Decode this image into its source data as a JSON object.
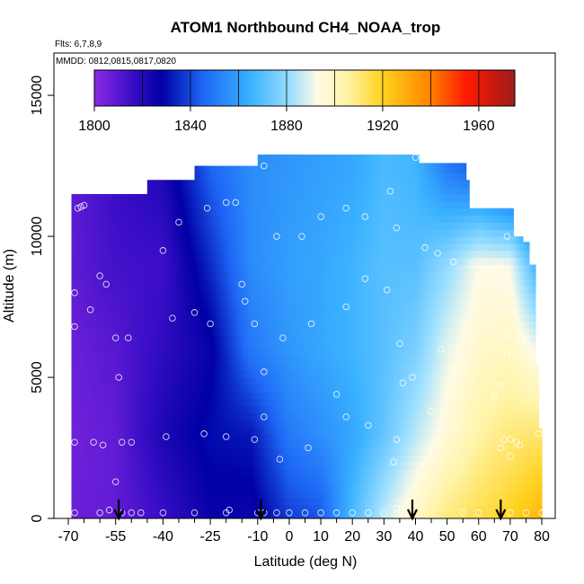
{
  "chart_data": {
    "type": "heatmap",
    "title": "ATOM1 Northbound CH4_NOAA_trop",
    "flights_label": "Flts: 6,7,8,9",
    "dates_label": "MMDD: 0812,0815,0817,0820",
    "xlabel": "Latitude (deg N)",
    "ylabel": "Altitude (m)",
    "xlim": [
      -70,
      80
    ],
    "ylim": [
      0,
      16500
    ],
    "x_ticks": [
      -70,
      -55,
      -40,
      -25,
      -10,
      0,
      10,
      20,
      30,
      40,
      50,
      60,
      70,
      80
    ],
    "x_tick_labels": [
      "-70",
      "-55",
      "-40",
      "-25",
      "-10",
      "0",
      "10",
      "20",
      "30",
      "40",
      "50",
      "60",
      "70",
      "80"
    ],
    "minor_x_ticks": [
      -65,
      -60,
      -50,
      -45,
      -35,
      -30,
      -20,
      -15,
      -5,
      5,
      15,
      25,
      35,
      45,
      55,
      65,
      75
    ],
    "y_ticks": [
      0,
      5000,
      10000,
      15000
    ],
    "y_tick_labels": [
      "0",
      "5000",
      "10000",
      "15000"
    ],
    "colorbar": {
      "min": 1800,
      "max": 1975,
      "ticks": [
        1800,
        1840,
        1880,
        1920,
        1960
      ],
      "tick_labels": [
        "1800",
        "1840",
        "1880",
        "1920",
        "1960"
      ],
      "stops": [
        {
          "v": 1800,
          "c": "#8a2be2"
        },
        {
          "v": 1815,
          "c": "#3d0fc8"
        },
        {
          "v": 1828,
          "c": "#0000a5"
        },
        {
          "v": 1845,
          "c": "#1e66f5"
        },
        {
          "v": 1865,
          "c": "#3ab2ff"
        },
        {
          "v": 1882,
          "c": "#9fe0ff"
        },
        {
          "v": 1893,
          "c": "#fffbe6"
        },
        {
          "v": 1905,
          "c": "#fff4a8"
        },
        {
          "v": 1920,
          "c": "#ffd21f"
        },
        {
          "v": 1938,
          "c": "#ff8c00"
        },
        {
          "v": 1955,
          "c": "#ff1a00"
        },
        {
          "v": 1975,
          "c": "#9b1c1c"
        }
      ]
    },
    "arrows_latitude": [
      -54,
      -9,
      39,
      67
    ],
    "coverage": [
      {
        "lat": -68,
        "top": 11500
      },
      {
        "lat": -55,
        "top": 11500
      },
      {
        "lat": -45,
        "top": 11500
      },
      {
        "lat": -44,
        "top": 12000
      },
      {
        "lat": -30,
        "top": 12000
      },
      {
        "lat": -29,
        "top": 12500
      },
      {
        "lat": -10,
        "top": 12500
      },
      {
        "lat": -9,
        "top": 12900
      },
      {
        "lat": 41,
        "top": 12900
      },
      {
        "lat": 42,
        "top": 12600
      },
      {
        "lat": 56,
        "top": 12600
      },
      {
        "lat": 57,
        "top": 12000
      },
      {
        "lat": 58,
        "top": 11000
      },
      {
        "lat": 70,
        "top": 11000
      },
      {
        "lat": 72,
        "top": 10000
      },
      {
        "lat": 75,
        "top": 9800
      },
      {
        "lat": 77,
        "top": 9000
      },
      {
        "lat": 79,
        "top": 5500
      },
      {
        "lat": 80,
        "top": 3200
      }
    ],
    "field_nodes": [
      {
        "lat": -70,
        "v": [
          1806,
          1805,
          1806,
          1808,
          1808
        ]
      },
      {
        "lat": -55,
        "v": [
          1808,
          1808,
          1810,
          1814,
          1816
        ]
      },
      {
        "lat": -40,
        "v": [
          1816,
          1822,
          1818,
          1815,
          1822
        ]
      },
      {
        "lat": -25,
        "v": [
          1826,
          1830,
          1826,
          1835,
          1845
        ]
      },
      {
        "lat": -12,
        "v": [
          1825,
          1832,
          1850,
          1855,
          1855
        ]
      },
      {
        "lat": 0,
        "v": [
          1838,
          1850,
          1858,
          1860,
          1858
        ]
      },
      {
        "lat": 10,
        "v": [
          1842,
          1856,
          1862,
          1862,
          1860
        ]
      },
      {
        "lat": 20,
        "v": [
          1868,
          1862,
          1866,
          1866,
          1862
        ]
      },
      {
        "lat": 30,
        "v": [
          1886,
          1872,
          1870,
          1870,
          1868
        ]
      },
      {
        "lat": 40,
        "v": [
          1900,
          1885,
          1876,
          1870,
          1866
        ]
      },
      {
        "lat": 50,
        "v": [
          1910,
          1896,
          1890,
          1880,
          1850
        ]
      },
      {
        "lat": 60,
        "v": [
          1915,
          1905,
          1898,
          1893,
          1842
        ]
      },
      {
        "lat": 70,
        "v": [
          1920,
          1910,
          1900,
          1892,
          1832
        ]
      },
      {
        "lat": 80,
        "v": [
          1928,
          1912,
          1890,
          1860,
          1830
        ]
      }
    ],
    "field_alts": [
      0,
      3000,
      6000,
      9000,
      12500
    ],
    "sample_points": [
      [
        -68,
        8000
      ],
      [
        -68,
        6800
      ],
      [
        -67,
        11000
      ],
      [
        -66,
        11050
      ],
      [
        -65,
        11100
      ],
      [
        -63,
        7400
      ],
      [
        -60,
        8600
      ],
      [
        -58,
        8300
      ],
      [
        -55,
        6400
      ],
      [
        -54,
        5000
      ],
      [
        -51,
        6400
      ],
      [
        -40,
        9500
      ],
      [
        -37,
        7100
      ],
      [
        -35,
        10500
      ],
      [
        -30,
        7300
      ],
      [
        -26,
        11000
      ],
      [
        -25,
        6900
      ],
      [
        -20,
        11200
      ],
      [
        -17,
        11200
      ],
      [
        -15,
        8300
      ],
      [
        -14,
        7700
      ],
      [
        -11,
        6900
      ],
      [
        -8,
        12500
      ],
      [
        -8,
        5200
      ],
      [
        -4,
        10000
      ],
      [
        -2,
        6400
      ],
      [
        4,
        10000
      ],
      [
        7,
        6900
      ],
      [
        10,
        10700
      ],
      [
        15,
        4400
      ],
      [
        18,
        11000
      ],
      [
        18,
        7500
      ],
      [
        24,
        10700
      ],
      [
        24,
        8500
      ],
      [
        31,
        8100
      ],
      [
        32,
        11600
      ],
      [
        34,
        10300
      ],
      [
        35,
        6200
      ],
      [
        36,
        4800
      ],
      [
        39,
        5000
      ],
      [
        40,
        12800
      ],
      [
        43,
        9600
      ],
      [
        47,
        9400
      ],
      [
        48,
        6000
      ],
      [
        45,
        3800
      ],
      [
        52,
        9100
      ],
      [
        58,
        9000
      ],
      [
        67,
        9000
      ],
      [
        69,
        10000
      ],
      [
        70,
        8100
      ],
      [
        69,
        6500
      ],
      [
        69,
        5800
      ],
      [
        67,
        4700
      ],
      [
        65,
        4300
      ],
      [
        67,
        2500
      ],
      [
        68,
        2800
      ],
      [
        70,
        2800
      ],
      [
        70,
        2200
      ],
      [
        72,
        2700
      ],
      [
        73,
        2600
      ],
      [
        79,
        3000
      ],
      [
        -68,
        2700
      ],
      [
        -62,
        2700
      ],
      [
        -59,
        2600
      ],
      [
        -53,
        2700
      ],
      [
        -50,
        2700
      ],
      [
        -55,
        1300
      ],
      [
        -39,
        2900
      ],
      [
        -27,
        3000
      ],
      [
        -20,
        2900
      ],
      [
        -11,
        2800
      ],
      [
        -8,
        3600
      ],
      [
        -3,
        2100
      ],
      [
        6,
        2500
      ],
      [
        18,
        3600
      ],
      [
        25,
        3300
      ],
      [
        34,
        2800
      ],
      [
        33,
        2000
      ],
      [
        -68,
        200
      ],
      [
        -60,
        200
      ],
      [
        -57,
        300
      ],
      [
        -53,
        200
      ],
      [
        -50,
        200
      ],
      [
        -47,
        200
      ],
      [
        -40,
        200
      ],
      [
        -30,
        200
      ],
      [
        -20,
        200
      ],
      [
        -19,
        300
      ],
      [
        -10,
        200
      ],
      [
        -8,
        200
      ],
      [
        -4,
        200
      ],
      [
        0,
        200
      ],
      [
        5,
        200
      ],
      [
        10,
        200
      ],
      [
        15,
        200
      ],
      [
        20,
        200
      ],
      [
        25,
        200
      ],
      [
        30,
        200
      ],
      [
        34,
        350
      ],
      [
        55,
        200
      ],
      [
        60,
        200
      ],
      [
        70,
        200
      ],
      [
        75,
        200
      ],
      [
        80,
        200
      ]
    ]
  }
}
